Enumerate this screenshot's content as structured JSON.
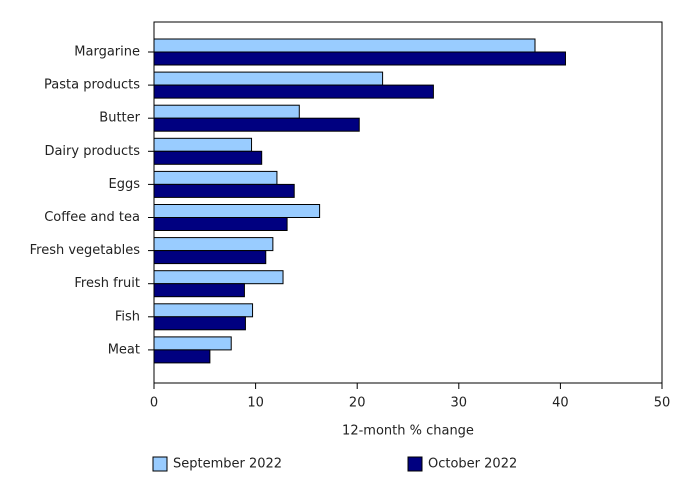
{
  "chart_data": {
    "type": "hbar",
    "categories": [
      "Margarine",
      "Pasta products",
      "Butter",
      "Dairy products",
      "Eggs",
      "Coffee and tea",
      "Fresh vegetables",
      "Fresh fruit",
      "Fish",
      "Meat"
    ],
    "series": [
      {
        "name": "September 2022",
        "color": "#99ccff",
        "values": [
          37.5,
          22.5,
          14.3,
          9.6,
          12.1,
          16.3,
          11.7,
          12.7,
          9.7,
          7.6
        ]
      },
      {
        "name": "October 2022",
        "color": "#000080",
        "values": [
          40.5,
          27.5,
          20.2,
          10.6,
          13.8,
          13.1,
          11.0,
          8.9,
          9.0,
          5.5
        ]
      }
    ],
    "xlabel": "12-month % change",
    "xlim": [
      0,
      50
    ],
    "xticks": [
      0,
      10,
      20,
      30,
      40,
      50
    ],
    "grid": false,
    "legend": "bottom"
  }
}
